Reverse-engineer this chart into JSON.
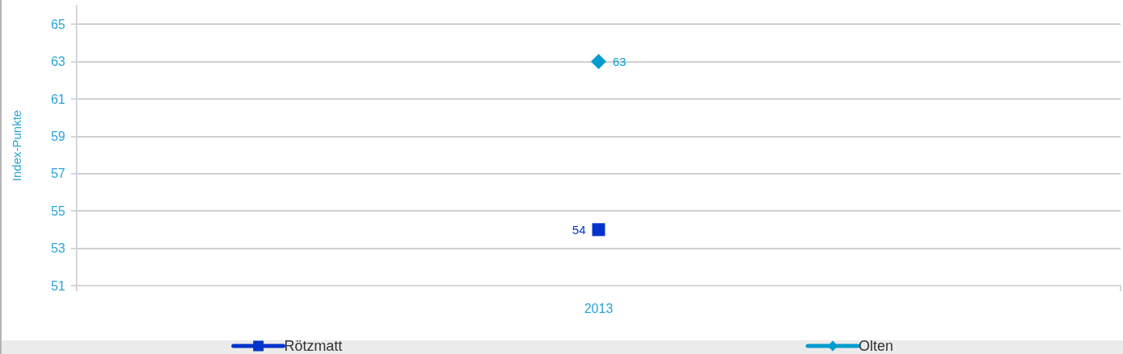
{
  "chart_data": {
    "type": "line",
    "ylabel": "Index-Punkte",
    "categories": [
      "2013"
    ],
    "series": [
      {
        "name": "Rötzmatt",
        "color": "#0033cc",
        "values": [
          54
        ],
        "marker": "square"
      },
      {
        "name": "Olten",
        "color": "#009ccf",
        "values": [
          63
        ],
        "marker": "diamond"
      }
    ],
    "ylim": [
      51,
      66
    ],
    "yticks": [
      51,
      53,
      55,
      57,
      59,
      61,
      63,
      65
    ],
    "grid": "y",
    "legend": "bottom",
    "data_labels": true
  }
}
